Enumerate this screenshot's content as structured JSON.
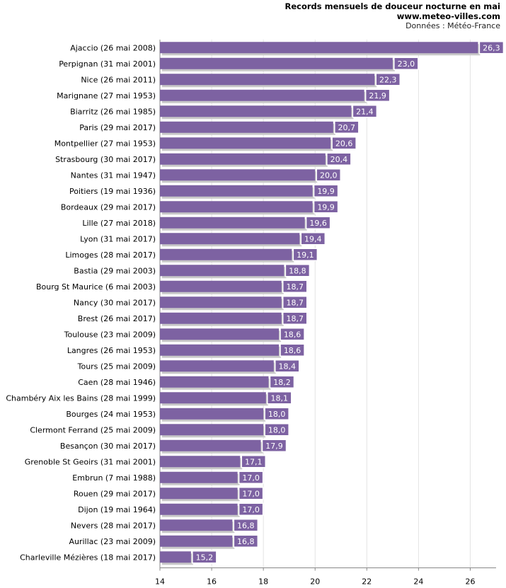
{
  "header": {
    "title": "Records mensuels de douceur nocturne en mai",
    "site": "www.meteo-villes.com",
    "source": "Données : Météo-France"
  },
  "colors": {
    "bar": "#7d62a2",
    "bar_shadow": "#c8c8c8",
    "value_box": "#7d62a2",
    "grid": "#e3e3e3",
    "axis": "#888888"
  },
  "chart_data": {
    "type": "bar",
    "orientation": "horizontal",
    "title": "Records mensuels de douceur nocturne en mai",
    "xlabel": "",
    "ylabel": "",
    "xlim": [
      14,
      27
    ],
    "xticks": [
      14,
      16,
      18,
      20,
      22,
      24,
      26
    ],
    "grid": true,
    "categories": [
      "Ajaccio (26 mai 2008)",
      "Perpignan (31 mai 2001)",
      "Nice (26 mai 2011)",
      "Marignane (27 mai 1953)",
      "Biarritz (26 mai 1985)",
      "Paris (29 mai 2017)",
      "Montpellier (27 mai 1953)",
      "Strasbourg (30 mai 2017)",
      "Nantes (31 mai 1947)",
      "Poitiers (19 mai 1936)",
      "Bordeaux (29 mai 2017)",
      "Lille (27 mai 2018)",
      "Lyon (31 mai 2017)",
      "Limoges (28 mai 2017)",
      "Bastia (29 mai 2003)",
      "Bourg St Maurice (6 mai 2003)",
      "Nancy (30 mai 2017)",
      "Brest (26 mai 2017)",
      "Toulouse (23 mai 2009)",
      "Langres (26 mai 1953)",
      "Tours (25 mai 2009)",
      "Caen (28 mai 1946)",
      "Chambéry Aix les Bains (28 mai 1999)",
      "Bourges (24 mai 1953)",
      "Clermont Ferrand (25 mai 2009)",
      "Besançon (30 mai 2017)",
      "Grenoble St Geoirs (31 mai 2001)",
      "Embrun (7 mai 1988)",
      "Rouen (29 mai 2017)",
      "Dijon (19 mai 1964)",
      "Nevers (28 mai 2017)",
      "Aurillac (23 mai 2009)",
      "Charleville Mézières (18 mai 2017)"
    ],
    "values": [
      26.3,
      23.0,
      22.3,
      21.9,
      21.4,
      20.7,
      20.6,
      20.4,
      20.0,
      19.9,
      19.9,
      19.6,
      19.4,
      19.1,
      18.8,
      18.7,
      18.7,
      18.7,
      18.6,
      18.6,
      18.4,
      18.2,
      18.1,
      18.0,
      18.0,
      17.9,
      17.1,
      17.0,
      17.0,
      17.0,
      16.8,
      16.8,
      15.2
    ],
    "value_labels": [
      "26,3",
      "23,0",
      "22,3",
      "21,9",
      "21,4",
      "20,7",
      "20,6",
      "20,4",
      "20,0",
      "19,9",
      "19,9",
      "19,6",
      "19,4",
      "19,1",
      "18,8",
      "18,7",
      "18,7",
      "18,7",
      "18,6",
      "18,6",
      "18,4",
      "18,2",
      "18,1",
      "18,0",
      "18,0",
      "17,9",
      "17,1",
      "17,0",
      "17,0",
      "17,0",
      "16,8",
      "16,8",
      "15,2"
    ]
  }
}
